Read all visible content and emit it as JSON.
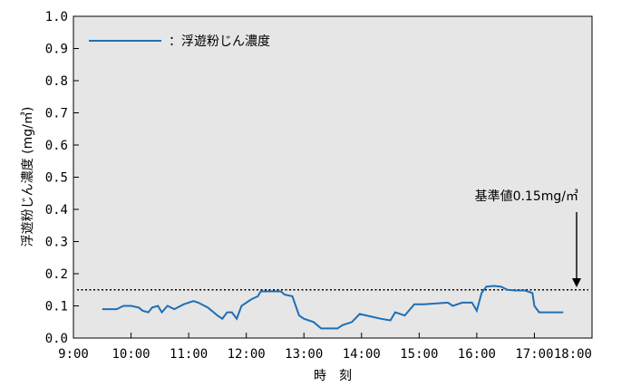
{
  "chart_data": {
    "type": "line",
    "xlabel": "時　刻",
    "ylabel": "浮遊粉じん濃度 (mg/㎥)",
    "xlim": [
      "9:00",
      "18:00"
    ],
    "ylim": [
      0.0,
      1.0
    ],
    "x_ticks": [
      "9:00",
      "10:00",
      "11:00",
      "12:00",
      "13:00",
      "14:00",
      "15:00",
      "16:00",
      "17:00",
      "18:00"
    ],
    "y_ticks": [
      "0.0",
      "0.1",
      "0.2",
      "0.3",
      "0.4",
      "0.5",
      "0.6",
      "0.7",
      "0.8",
      "0.9",
      "1.0"
    ],
    "grid": false,
    "legend_position": "top-left",
    "series": [
      {
        "name": "浮遊粉じん濃度",
        "color": "#1f6fb5",
        "points": [
          [
            "9:30",
            0.09
          ],
          [
            "9:45",
            0.09
          ],
          [
            "9:52",
            0.1
          ],
          [
            "10:00",
            0.1
          ],
          [
            "10:08",
            0.095
          ],
          [
            "10:12",
            0.085
          ],
          [
            "10:18",
            0.08
          ],
          [
            "10:22",
            0.095
          ],
          [
            "10:28",
            0.1
          ],
          [
            "10:32",
            0.08
          ],
          [
            "10:38",
            0.1
          ],
          [
            "10:45",
            0.09
          ],
          [
            "10:55",
            0.105
          ],
          [
            "11:05",
            0.115
          ],
          [
            "11:10",
            0.11
          ],
          [
            "11:20",
            0.095
          ],
          [
            "11:30",
            0.07
          ],
          [
            "11:35",
            0.06
          ],
          [
            "11:40",
            0.08
          ],
          [
            "11:45",
            0.08
          ],
          [
            "11:50",
            0.06
          ],
          [
            "11:55",
            0.1
          ],
          [
            "12:05",
            0.12
          ],
          [
            "12:12",
            0.13
          ],
          [
            "12:15",
            0.145
          ],
          [
            "12:30",
            0.145
          ],
          [
            "12:36",
            0.145
          ],
          [
            "12:40",
            0.135
          ],
          [
            "12:48",
            0.13
          ],
          [
            "12:55",
            0.07
          ],
          [
            "13:00",
            0.06
          ],
          [
            "13:10",
            0.05
          ],
          [
            "13:18",
            0.03
          ],
          [
            "13:35",
            0.03
          ],
          [
            "13:40",
            0.04
          ],
          [
            "13:50",
            0.05
          ],
          [
            "13:58",
            0.075
          ],
          [
            "14:05",
            0.07
          ],
          [
            "14:20",
            0.06
          ],
          [
            "14:30",
            0.055
          ],
          [
            "14:35",
            0.08
          ],
          [
            "14:45",
            0.07
          ],
          [
            "14:55",
            0.105
          ],
          [
            "15:05",
            0.105
          ],
          [
            "15:30",
            0.11
          ],
          [
            "15:35",
            0.1
          ],
          [
            "15:45",
            0.11
          ],
          [
            "15:55",
            0.11
          ],
          [
            "16:00",
            0.085
          ],
          [
            "16:05",
            0.14
          ],
          [
            "16:10",
            0.16
          ],
          [
            "16:18",
            0.162
          ],
          [
            "16:25",
            0.16
          ],
          [
            "16:32",
            0.15
          ],
          [
            "16:40",
            0.148
          ],
          [
            "16:50",
            0.148
          ],
          [
            "16:58",
            0.14
          ],
          [
            "17:00",
            0.1
          ],
          [
            "17:05",
            0.08
          ],
          [
            "17:12",
            0.08
          ],
          [
            "17:30",
            0.08
          ]
        ]
      }
    ],
    "reference_line": {
      "label": "基準値0.15mg/㎥",
      "y": 0.15,
      "style": "dotted"
    }
  }
}
